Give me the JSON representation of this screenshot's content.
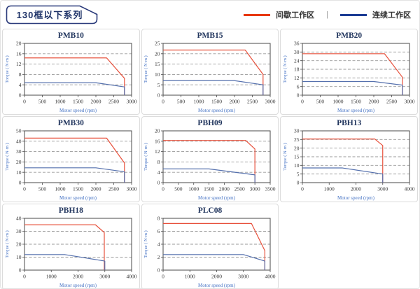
{
  "header": {
    "title": "130框以下系列"
  },
  "legend": {
    "items": [
      {
        "label": "间歇工作区",
        "color": "#e8380d"
      },
      {
        "label": "连续工作区",
        "color": "#1c3c94"
      }
    ],
    "separator": "|"
  },
  "styles": {
    "chart_red": "#e7503b",
    "chart_blue": "#5570ad",
    "grid": "#9a9a9a",
    "frame": "#4a4a4a",
    "tick_text": "#333333",
    "axis_label": "#4472c4",
    "title_color": "#22365e"
  },
  "chart_data": [
    {
      "type": "line",
      "title": "PMB10",
      "xlabel": "Motor speed (rpm)",
      "ylabel": "Torque ( N·m )",
      "xlim": [
        0,
        3000
      ],
      "xticks": [
        0,
        500,
        1000,
        1500,
        2000,
        2500,
        3000
      ],
      "ylim": [
        0,
        20
      ],
      "yticks": [
        0,
        4,
        8,
        12,
        16,
        20
      ],
      "series": [
        {
          "name": "间歇工作区",
          "color_key": "chart_red",
          "points": [
            [
              0,
              14.4
            ],
            [
              2300,
              14.4
            ],
            [
              2800,
              6.5
            ],
            [
              2800,
              0
            ]
          ]
        },
        {
          "name": "连续工作区",
          "color_key": "chart_blue",
          "points": [
            [
              0,
              4.8
            ],
            [
              2000,
              4.8
            ],
            [
              2800,
              3.2
            ],
            [
              2800,
              0
            ]
          ]
        }
      ]
    },
    {
      "type": "line",
      "title": "PMB15",
      "xlabel": "Motor speed (rpm)",
      "ylabel": "Torque ( N·m )",
      "xlim": [
        0,
        3000
      ],
      "xticks": [
        0,
        500,
        1000,
        1500,
        2000,
        2500,
        3000
      ],
      "ylim": [
        0,
        25
      ],
      "yticks": [
        0,
        5,
        10,
        15,
        20,
        25
      ],
      "series": [
        {
          "name": "间歇工作区",
          "color_key": "chart_red",
          "points": [
            [
              0,
              21.8
            ],
            [
              2300,
              21.8
            ],
            [
              2800,
              10
            ],
            [
              2800,
              0
            ]
          ]
        },
        {
          "name": "连续工作区",
          "color_key": "chart_blue",
          "points": [
            [
              0,
              7
            ],
            [
              2000,
              7
            ],
            [
              2800,
              5
            ],
            [
              2800,
              0
            ]
          ]
        }
      ]
    },
    {
      "type": "line",
      "title": "PMB20",
      "xlabel": "Motor speed (rpm)",
      "ylabel": "Torque ( N·m )",
      "xlim": [
        0,
        3000
      ],
      "xticks": [
        0,
        500,
        1000,
        1500,
        2000,
        2500,
        3000
      ],
      "ylim": [
        0,
        36
      ],
      "yticks": [
        0,
        6,
        12,
        18,
        24,
        30,
        36
      ],
      "series": [
        {
          "name": "间歇工作区",
          "color_key": "chart_red",
          "points": [
            [
              0,
              28.8
            ],
            [
              2300,
              28.8
            ],
            [
              2800,
              12.5
            ],
            [
              2800,
              0
            ]
          ]
        },
        {
          "name": "连续工作区",
          "color_key": "chart_blue",
          "points": [
            [
              0,
              9.5
            ],
            [
              2000,
              9.5
            ],
            [
              2800,
              7
            ],
            [
              2800,
              0
            ]
          ]
        }
      ]
    },
    {
      "type": "line",
      "title": "PMB30",
      "xlabel": "Motor speed (rpm)",
      "ylabel": "Torque ( N·m )",
      "xlim": [
        0,
        3000
      ],
      "xticks": [
        0,
        500,
        1000,
        1500,
        2000,
        2500,
        3000
      ],
      "ylim": [
        0,
        50
      ],
      "yticks": [
        0,
        10,
        20,
        30,
        40,
        50
      ],
      "series": [
        {
          "name": "间歇工作区",
          "color_key": "chart_red",
          "points": [
            [
              0,
              43
            ],
            [
              2300,
              43
            ],
            [
              2800,
              19
            ],
            [
              2800,
              0
            ]
          ]
        },
        {
          "name": "连续工作区",
          "color_key": "chart_blue",
          "points": [
            [
              0,
              14.3
            ],
            [
              2000,
              14.3
            ],
            [
              2800,
              10.5
            ],
            [
              2800,
              0
            ]
          ]
        }
      ]
    },
    {
      "type": "line",
      "title": "PBH09",
      "xlabel": "Motor speed (rpm)",
      "ylabel": "Torque ( N·m )",
      "xlim": [
        0,
        3500
      ],
      "xticks": [
        0,
        500,
        1000,
        1500,
        2000,
        2500,
        3000,
        3500
      ],
      "ylim": [
        0,
        20
      ],
      "yticks": [
        0,
        4,
        8,
        12,
        16,
        20
      ],
      "series": [
        {
          "name": "间歇工作区",
          "color_key": "chart_red",
          "points": [
            [
              0,
              16.3
            ],
            [
              2700,
              16.3
            ],
            [
              3000,
              13
            ],
            [
              3000,
              0
            ]
          ]
        },
        {
          "name": "连续工作区",
          "color_key": "chart_blue",
          "points": [
            [
              0,
              5.3
            ],
            [
              1500,
              5.3
            ],
            [
              3000,
              3
            ],
            [
              3000,
              0
            ]
          ]
        }
      ]
    },
    {
      "type": "line",
      "title": "PBH13",
      "xlabel": "Motor speed (rpm)",
      "ylabel": "Torque ( N·m )",
      "xlim": [
        0,
        4000
      ],
      "xticks": [
        0,
        1000,
        2000,
        3000,
        4000
      ],
      "ylim": [
        0,
        30
      ],
      "yticks": [
        0,
        5,
        10,
        15,
        20,
        25,
        30
      ],
      "series": [
        {
          "name": "间歇工作区",
          "color_key": "chart_red",
          "points": [
            [
              0,
              25.3
            ],
            [
              2700,
              25.3
            ],
            [
              3000,
              21.5
            ],
            [
              3000,
              0
            ]
          ]
        },
        {
          "name": "连续工作区",
          "color_key": "chart_blue",
          "points": [
            [
              0,
              8.5
            ],
            [
              1500,
              8.5
            ],
            [
              3000,
              5
            ],
            [
              3000,
              0
            ]
          ]
        }
      ]
    },
    {
      "type": "line",
      "title": "PBH18",
      "xlabel": "Motor speed (rpm)",
      "ylabel": "Torque ( N·m )",
      "xlim": [
        0,
        4000
      ],
      "xticks": [
        0,
        1000,
        2000,
        3000,
        4000
      ],
      "ylim": [
        0,
        40
      ],
      "yticks": [
        0,
        10,
        20,
        30,
        40
      ],
      "series": [
        {
          "name": "间歇工作区",
          "color_key": "chart_red",
          "points": [
            [
              0,
              35
            ],
            [
              2650,
              35
            ],
            [
              2980,
              29
            ],
            [
              2980,
              0
            ]
          ]
        },
        {
          "name": "连续工作区",
          "color_key": "chart_blue",
          "points": [
            [
              0,
              12
            ],
            [
              1500,
              12
            ],
            [
              3000,
              7
            ],
            [
              3000,
              0
            ]
          ]
        }
      ]
    },
    {
      "type": "line",
      "title": "PLC08",
      "xlabel": "Motor speed (rpm)",
      "ylabel": "Torque ( N·m )",
      "xlim": [
        0,
        4000
      ],
      "xticks": [
        0,
        1000,
        2000,
        3000,
        4000
      ],
      "ylim": [
        0,
        8
      ],
      "yticks": [
        0,
        2,
        4,
        6,
        8
      ],
      "series": [
        {
          "name": "间歇工作区",
          "color_key": "chart_red",
          "points": [
            [
              0,
              7.2
            ],
            [
              3300,
              7.2
            ],
            [
              3800,
              3
            ],
            [
              3800,
              0
            ]
          ]
        },
        {
          "name": "连续工作区",
          "color_key": "chart_blue",
          "points": [
            [
              0,
              2.4
            ],
            [
              3000,
              2.4
            ],
            [
              3800,
              1.4
            ],
            [
              3800,
              0
            ]
          ]
        }
      ]
    }
  ]
}
